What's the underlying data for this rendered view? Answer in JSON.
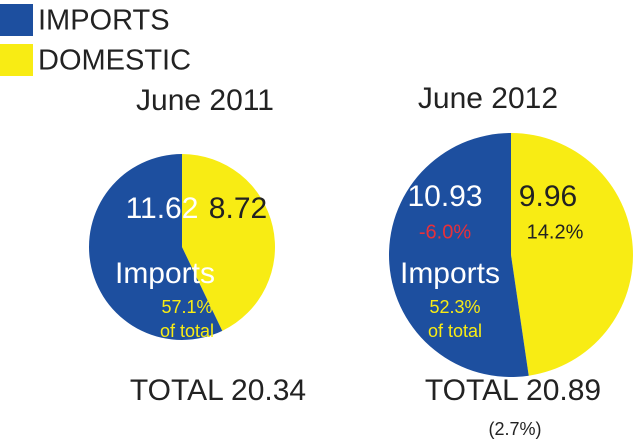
{
  "legend": {
    "labels": [
      "IMPORTS",
      "DOMESTIC"
    ],
    "colors": [
      "#1d4f9f",
      "#f8ec14"
    ]
  },
  "chart_data": [
    {
      "type": "pie",
      "title": "June 2011",
      "values": [
        11.62,
        8.72
      ],
      "colors": [
        "#1d4f9f",
        "#f8ec14"
      ],
      "annotations": {
        "slice_label": "Imports",
        "share": "57.1%",
        "share_note": "of total",
        "total_label": "TOTAL 20.34"
      }
    },
    {
      "type": "pie",
      "title": "June 2012",
      "values": [
        10.93,
        9.96
      ],
      "colors": [
        "#1d4f9f",
        "#f8ec14"
      ],
      "change_labels": [
        "-6.0%",
        "14.2%"
      ],
      "annotations": {
        "slice_label": "Imports",
        "share": "52.3%",
        "share_note": "of total",
        "total_label": "TOTAL 20.89",
        "total_change": "(2.7%)"
      }
    }
  ]
}
